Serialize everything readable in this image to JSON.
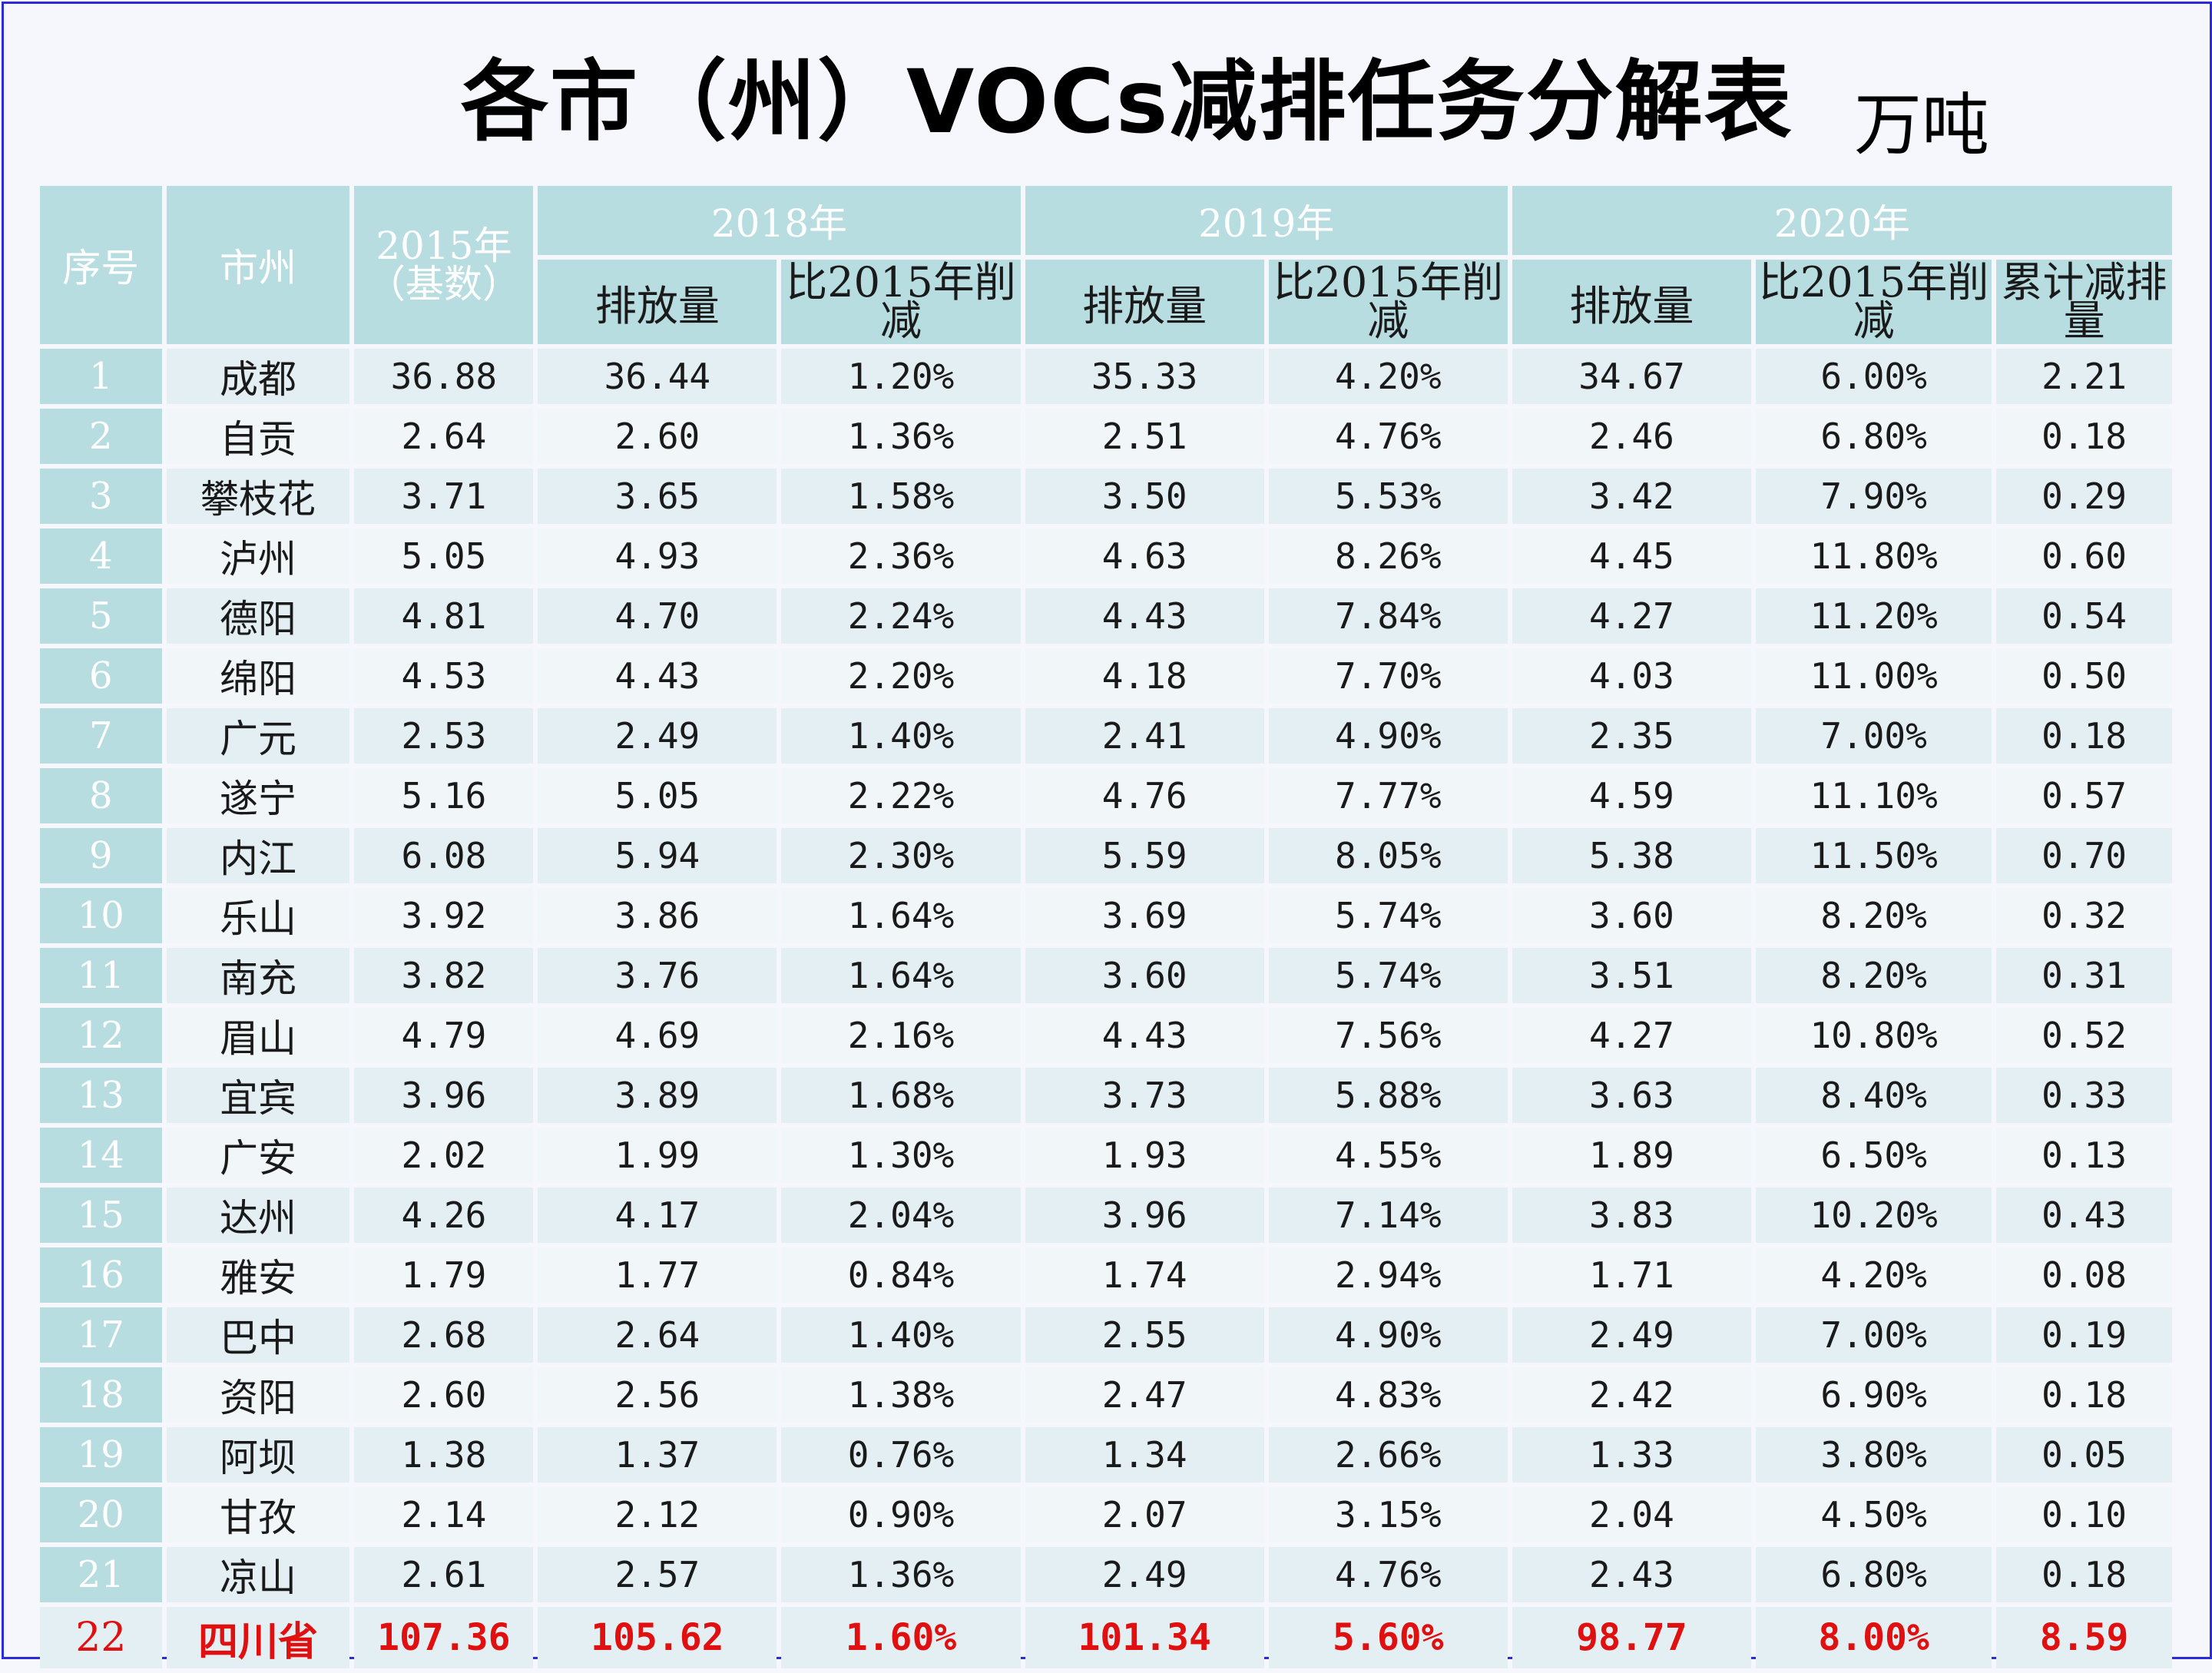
{
  "title": "各市（州）VOCs减排任务分解表",
  "unit": "万吨",
  "headers": {
    "index": "序号",
    "city": "市州",
    "base_line1": "2015年",
    "base_line2": "（基数）",
    "year_2018": "2018年",
    "year_2019": "2019年",
    "year_2020": "2020年",
    "emission": "排放量",
    "reduction": "比2015年削减",
    "cumulative": "累计减排量"
  },
  "rows": [
    {
      "idx": "1",
      "city": "成都",
      "base": "36.88",
      "e2018": "36.44",
      "r2018": "1.20%",
      "e2019": "35.33",
      "r2019": "4.20%",
      "e2020": "34.67",
      "r2020": "6.00%",
      "cum": "2.21"
    },
    {
      "idx": "2",
      "city": "自贡",
      "base": "2.64",
      "e2018": "2.60",
      "r2018": "1.36%",
      "e2019": "2.51",
      "r2019": "4.76%",
      "e2020": "2.46",
      "r2020": "6.80%",
      "cum": "0.18"
    },
    {
      "idx": "3",
      "city": "攀枝花",
      "base": "3.71",
      "e2018": "3.65",
      "r2018": "1.58%",
      "e2019": "3.50",
      "r2019": "5.53%",
      "e2020": "3.42",
      "r2020": "7.90%",
      "cum": "0.29"
    },
    {
      "idx": "4",
      "city": "泸州",
      "base": "5.05",
      "e2018": "4.93",
      "r2018": "2.36%",
      "e2019": "4.63",
      "r2019": "8.26%",
      "e2020": "4.45",
      "r2020": "11.80%",
      "cum": "0.60"
    },
    {
      "idx": "5",
      "city": "德阳",
      "base": "4.81",
      "e2018": "4.70",
      "r2018": "2.24%",
      "e2019": "4.43",
      "r2019": "7.84%",
      "e2020": "4.27",
      "r2020": "11.20%",
      "cum": "0.54"
    },
    {
      "idx": "6",
      "city": "绵阳",
      "base": "4.53",
      "e2018": "4.43",
      "r2018": "2.20%",
      "e2019": "4.18",
      "r2019": "7.70%",
      "e2020": "4.03",
      "r2020": "11.00%",
      "cum": "0.50"
    },
    {
      "idx": "7",
      "city": "广元",
      "base": "2.53",
      "e2018": "2.49",
      "r2018": "1.40%",
      "e2019": "2.41",
      "r2019": "4.90%",
      "e2020": "2.35",
      "r2020": "7.00%",
      "cum": "0.18"
    },
    {
      "idx": "8",
      "city": "遂宁",
      "base": "5.16",
      "e2018": "5.05",
      "r2018": "2.22%",
      "e2019": "4.76",
      "r2019": "7.77%",
      "e2020": "4.59",
      "r2020": "11.10%",
      "cum": "0.57"
    },
    {
      "idx": "9",
      "city": "内江",
      "base": "6.08",
      "e2018": "5.94",
      "r2018": "2.30%",
      "e2019": "5.59",
      "r2019": "8.05%",
      "e2020": "5.38",
      "r2020": "11.50%",
      "cum": "0.70"
    },
    {
      "idx": "10",
      "city": "乐山",
      "base": "3.92",
      "e2018": "3.86",
      "r2018": "1.64%",
      "e2019": "3.69",
      "r2019": "5.74%",
      "e2020": "3.60",
      "r2020": "8.20%",
      "cum": "0.32"
    },
    {
      "idx": "11",
      "city": "南充",
      "base": "3.82",
      "e2018": "3.76",
      "r2018": "1.64%",
      "e2019": "3.60",
      "r2019": "5.74%",
      "e2020": "3.51",
      "r2020": "8.20%",
      "cum": "0.31"
    },
    {
      "idx": "12",
      "city": "眉山",
      "base": "4.79",
      "e2018": "4.69",
      "r2018": "2.16%",
      "e2019": "4.43",
      "r2019": "7.56%",
      "e2020": "4.27",
      "r2020": "10.80%",
      "cum": "0.52"
    },
    {
      "idx": "13",
      "city": "宜宾",
      "base": "3.96",
      "e2018": "3.89",
      "r2018": "1.68%",
      "e2019": "3.73",
      "r2019": "5.88%",
      "e2020": "3.63",
      "r2020": "8.40%",
      "cum": "0.33"
    },
    {
      "idx": "14",
      "city": "广安",
      "base": "2.02",
      "e2018": "1.99",
      "r2018": "1.30%",
      "e2019": "1.93",
      "r2019": "4.55%",
      "e2020": "1.89",
      "r2020": "6.50%",
      "cum": "0.13"
    },
    {
      "idx": "15",
      "city": "达州",
      "base": "4.26",
      "e2018": "4.17",
      "r2018": "2.04%",
      "e2019": "3.96",
      "r2019": "7.14%",
      "e2020": "3.83",
      "r2020": "10.20%",
      "cum": "0.43"
    },
    {
      "idx": "16",
      "city": "雅安",
      "base": "1.79",
      "e2018": "1.77",
      "r2018": "0.84%",
      "e2019": "1.74",
      "r2019": "2.94%",
      "e2020": "1.71",
      "r2020": "4.20%",
      "cum": "0.08"
    },
    {
      "idx": "17",
      "city": "巴中",
      "base": "2.68",
      "e2018": "2.64",
      "r2018": "1.40%",
      "e2019": "2.55",
      "r2019": "4.90%",
      "e2020": "2.49",
      "r2020": "7.00%",
      "cum": "0.19"
    },
    {
      "idx": "18",
      "city": "资阳",
      "base": "2.60",
      "e2018": "2.56",
      "r2018": "1.38%",
      "e2019": "2.47",
      "r2019": "4.83%",
      "e2020": "2.42",
      "r2020": "6.90%",
      "cum": "0.18"
    },
    {
      "idx": "19",
      "city": "阿坝",
      "base": "1.38",
      "e2018": "1.37",
      "r2018": "0.76%",
      "e2019": "1.34",
      "r2019": "2.66%",
      "e2020": "1.33",
      "r2020": "3.80%",
      "cum": "0.05"
    },
    {
      "idx": "20",
      "city": "甘孜",
      "base": "2.14",
      "e2018": "2.12",
      "r2018": "0.90%",
      "e2019": "2.07",
      "r2019": "3.15%",
      "e2020": "2.04",
      "r2020": "4.50%",
      "cum": "0.10"
    },
    {
      "idx": "21",
      "city": "凉山",
      "base": "2.61",
      "e2018": "2.57",
      "r2018": "1.36%",
      "e2019": "2.49",
      "r2019": "4.76%",
      "e2020": "2.43",
      "r2020": "6.80%",
      "cum": "0.18"
    }
  ],
  "total": {
    "idx": "22",
    "city": "四川省",
    "base": "107.36",
    "e2018": "105.62",
    "r2018": "1.60%",
    "e2019": "101.34",
    "r2019": "5.60%",
    "e2020": "98.77",
    "r2020": "8.00%",
    "cum": "8.59"
  },
  "colors": {
    "header_bg": "#b8dde1",
    "row_odd_bg": "#e3eff2",
    "row_even_bg": "#f1f6f8",
    "total_text": "#e01010",
    "frame_border": "#2b2bd8"
  }
}
